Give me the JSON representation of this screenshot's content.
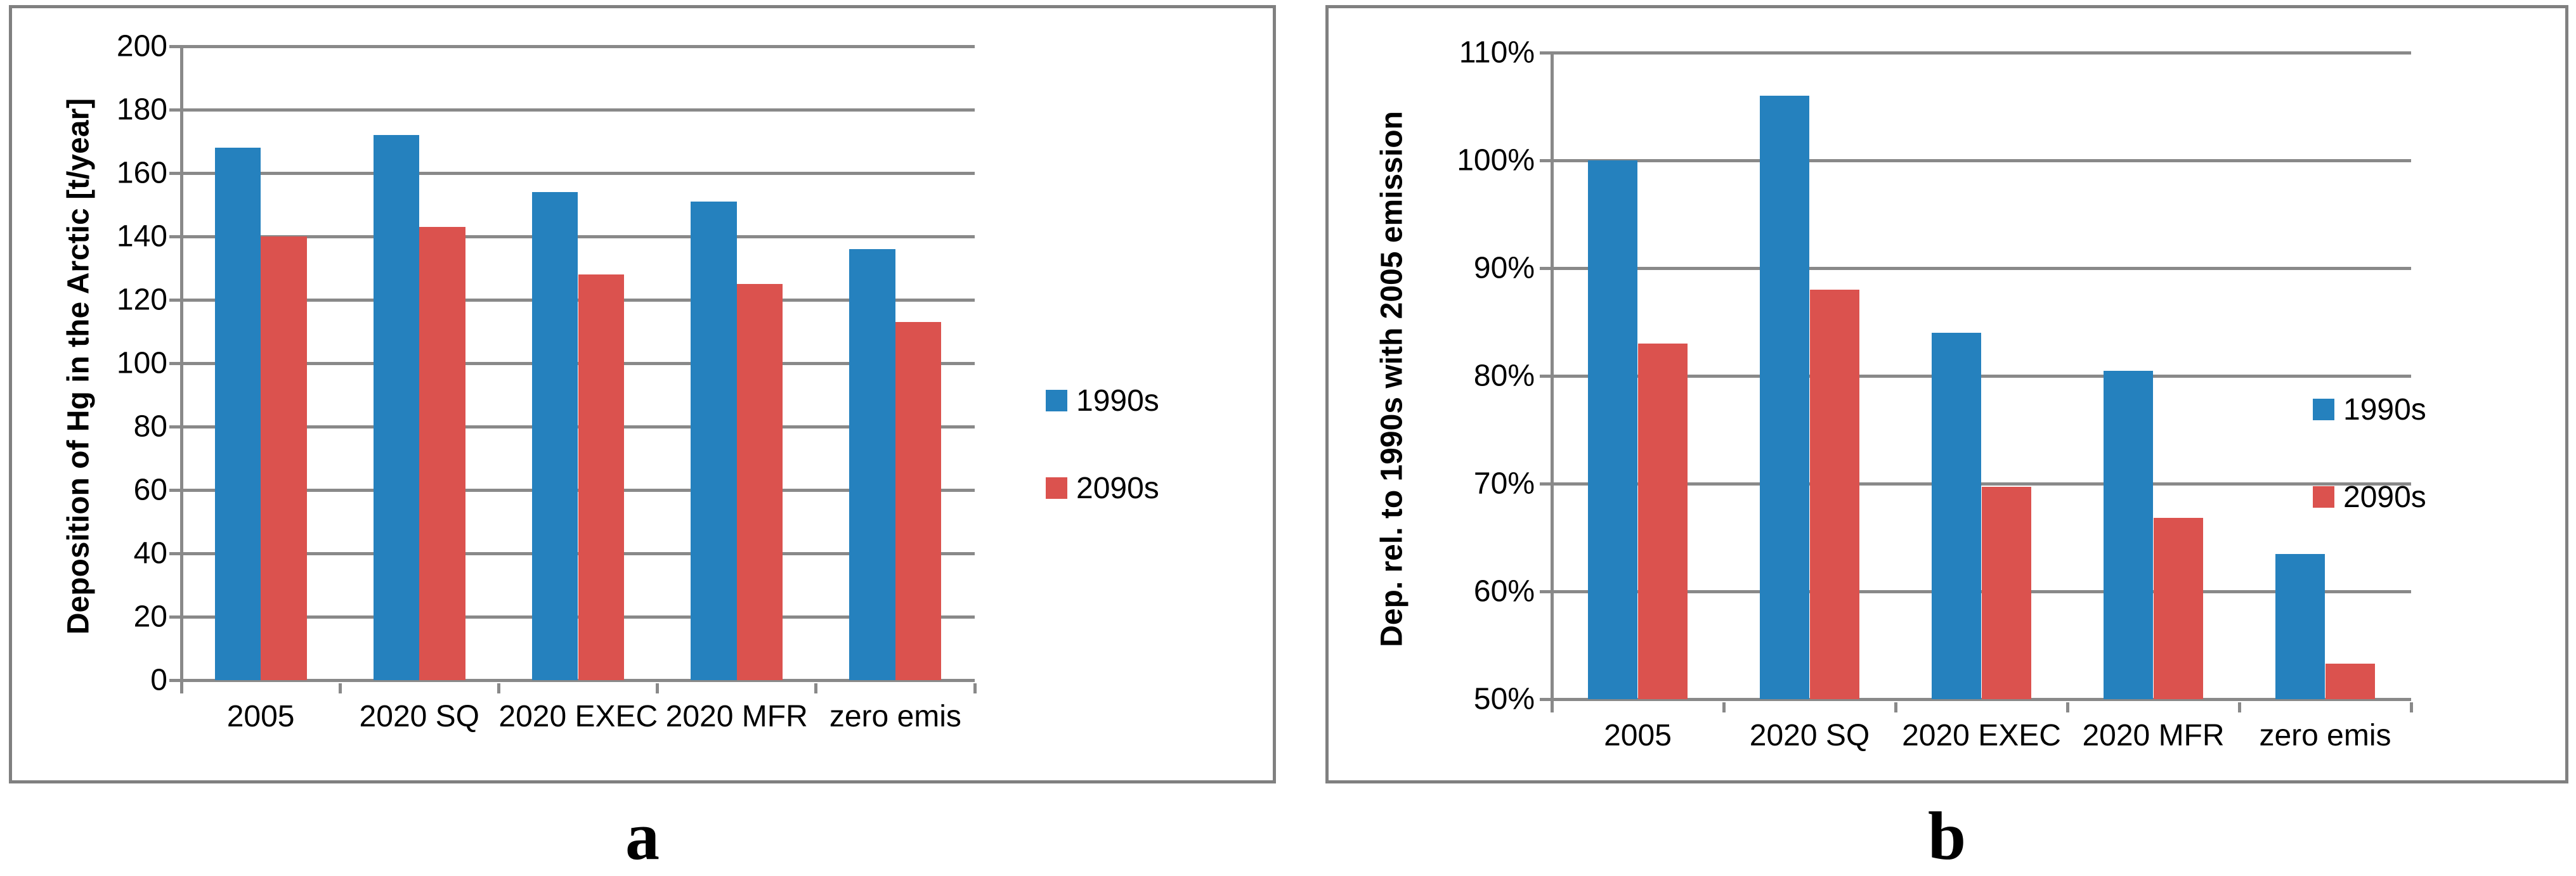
{
  "figure": {
    "captions": {
      "a": "a",
      "b": "b"
    }
  },
  "colors": {
    "series_1990s": "#2581BE",
    "series_2090s": "#DB524E",
    "grid": "#898989",
    "panel_border": "#808080"
  },
  "chart_data": [
    {
      "type": "bar",
      "panel": "a",
      "title": "",
      "xlabel": "",
      "ylabel": "Deposition of Hg in the Arctic [t/year]",
      "categories": [
        "2005",
        "2020 SQ",
        "2020 EXEC",
        "2020 MFR",
        "zero emis"
      ],
      "series": [
        {
          "name": "1990s",
          "color": "#2581BE",
          "values": [
            168,
            172,
            154,
            151,
            136
          ]
        },
        {
          "name": "2090s",
          "color": "#DB524E",
          "values": [
            140,
            143,
            128,
            125,
            113
          ]
        }
      ],
      "ylim": [
        0,
        200
      ],
      "grid": true,
      "legend_position": "right",
      "caption": "a",
      "yticks": [
        {
          "value": 0,
          "label": "0"
        },
        {
          "value": 20,
          "label": "20"
        },
        {
          "value": 40,
          "label": "40"
        },
        {
          "value": 60,
          "label": "60"
        },
        {
          "value": 80,
          "label": "80"
        },
        {
          "value": 100,
          "label": "100"
        },
        {
          "value": 120,
          "label": "120"
        },
        {
          "value": 140,
          "label": "140"
        },
        {
          "value": 160,
          "label": "160"
        },
        {
          "value": 180,
          "label": "180"
        },
        {
          "value": 200,
          "label": "200"
        }
      ]
    },
    {
      "type": "bar",
      "panel": "b",
      "title": "",
      "xlabel": "",
      "ylabel": "Dep. rel. to 1990s with 2005 emission",
      "categories": [
        "2005",
        "2020 SQ",
        "2020 EXEC",
        "2020 MFR",
        "zero emis"
      ],
      "series": [
        {
          "name": "1990s",
          "color": "#2581BE",
          "values": [
            100,
            106,
            84,
            80.5,
            63.5
          ]
        },
        {
          "name": "2090s",
          "color": "#DB524E",
          "values": [
            83,
            88,
            69.7,
            66.8,
            53.3
          ]
        }
      ],
      "ylim": [
        50,
        110
      ],
      "grid": true,
      "legend_position": "right",
      "caption": "b",
      "yticks": [
        {
          "value": 50,
          "label": "50%"
        },
        {
          "value": 60,
          "label": "60%"
        },
        {
          "value": 70,
          "label": "70%"
        },
        {
          "value": 80,
          "label": "80%"
        },
        {
          "value": 90,
          "label": "90%"
        },
        {
          "value": 100,
          "label": "100%"
        },
        {
          "value": 110,
          "label": "110%"
        }
      ]
    }
  ]
}
